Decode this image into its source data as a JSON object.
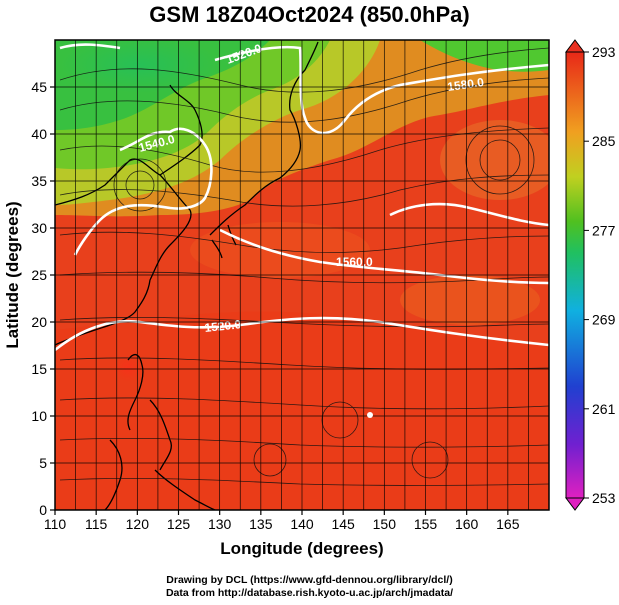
{
  "title": "GSM 18Z04Oct2024 (850.0hPa)",
  "x_axis": {
    "label": "Longitude (degrees)",
    "range": [
      110,
      170
    ],
    "ticks": [
      "110",
      "115",
      "120",
      "125",
      "130",
      "135",
      "140",
      "145",
      "150",
      "155",
      "160",
      "165"
    ]
  },
  "y_axis": {
    "label": "Latitude (degrees)",
    "range": [
      0,
      50
    ],
    "ticks": [
      "0",
      "5",
      "10",
      "15",
      "20",
      "25",
      "30",
      "35",
      "40",
      "45"
    ]
  },
  "colorbar": {
    "ticks": [
      "253",
      "261",
      "269",
      "277",
      "285",
      "293"
    ],
    "colors": [
      "#e020c0",
      "#3050d0",
      "#10b0e0",
      "#30c030",
      "#f0a020",
      "#e83020"
    ]
  },
  "contours": [
    {
      "label": "1520.0"
    },
    {
      "label": "1540.0"
    },
    {
      "label": "1560.0"
    },
    {
      "label": "1520.0"
    },
    {
      "label": "1580.0"
    }
  ],
  "credits": [
    "Drawing by DCL (https://www.gfd-dennou.org/library/dcl/)",
    "Data from http://database.rish.kyoto-u.ac.jp/arch/jmadata/"
  ]
}
